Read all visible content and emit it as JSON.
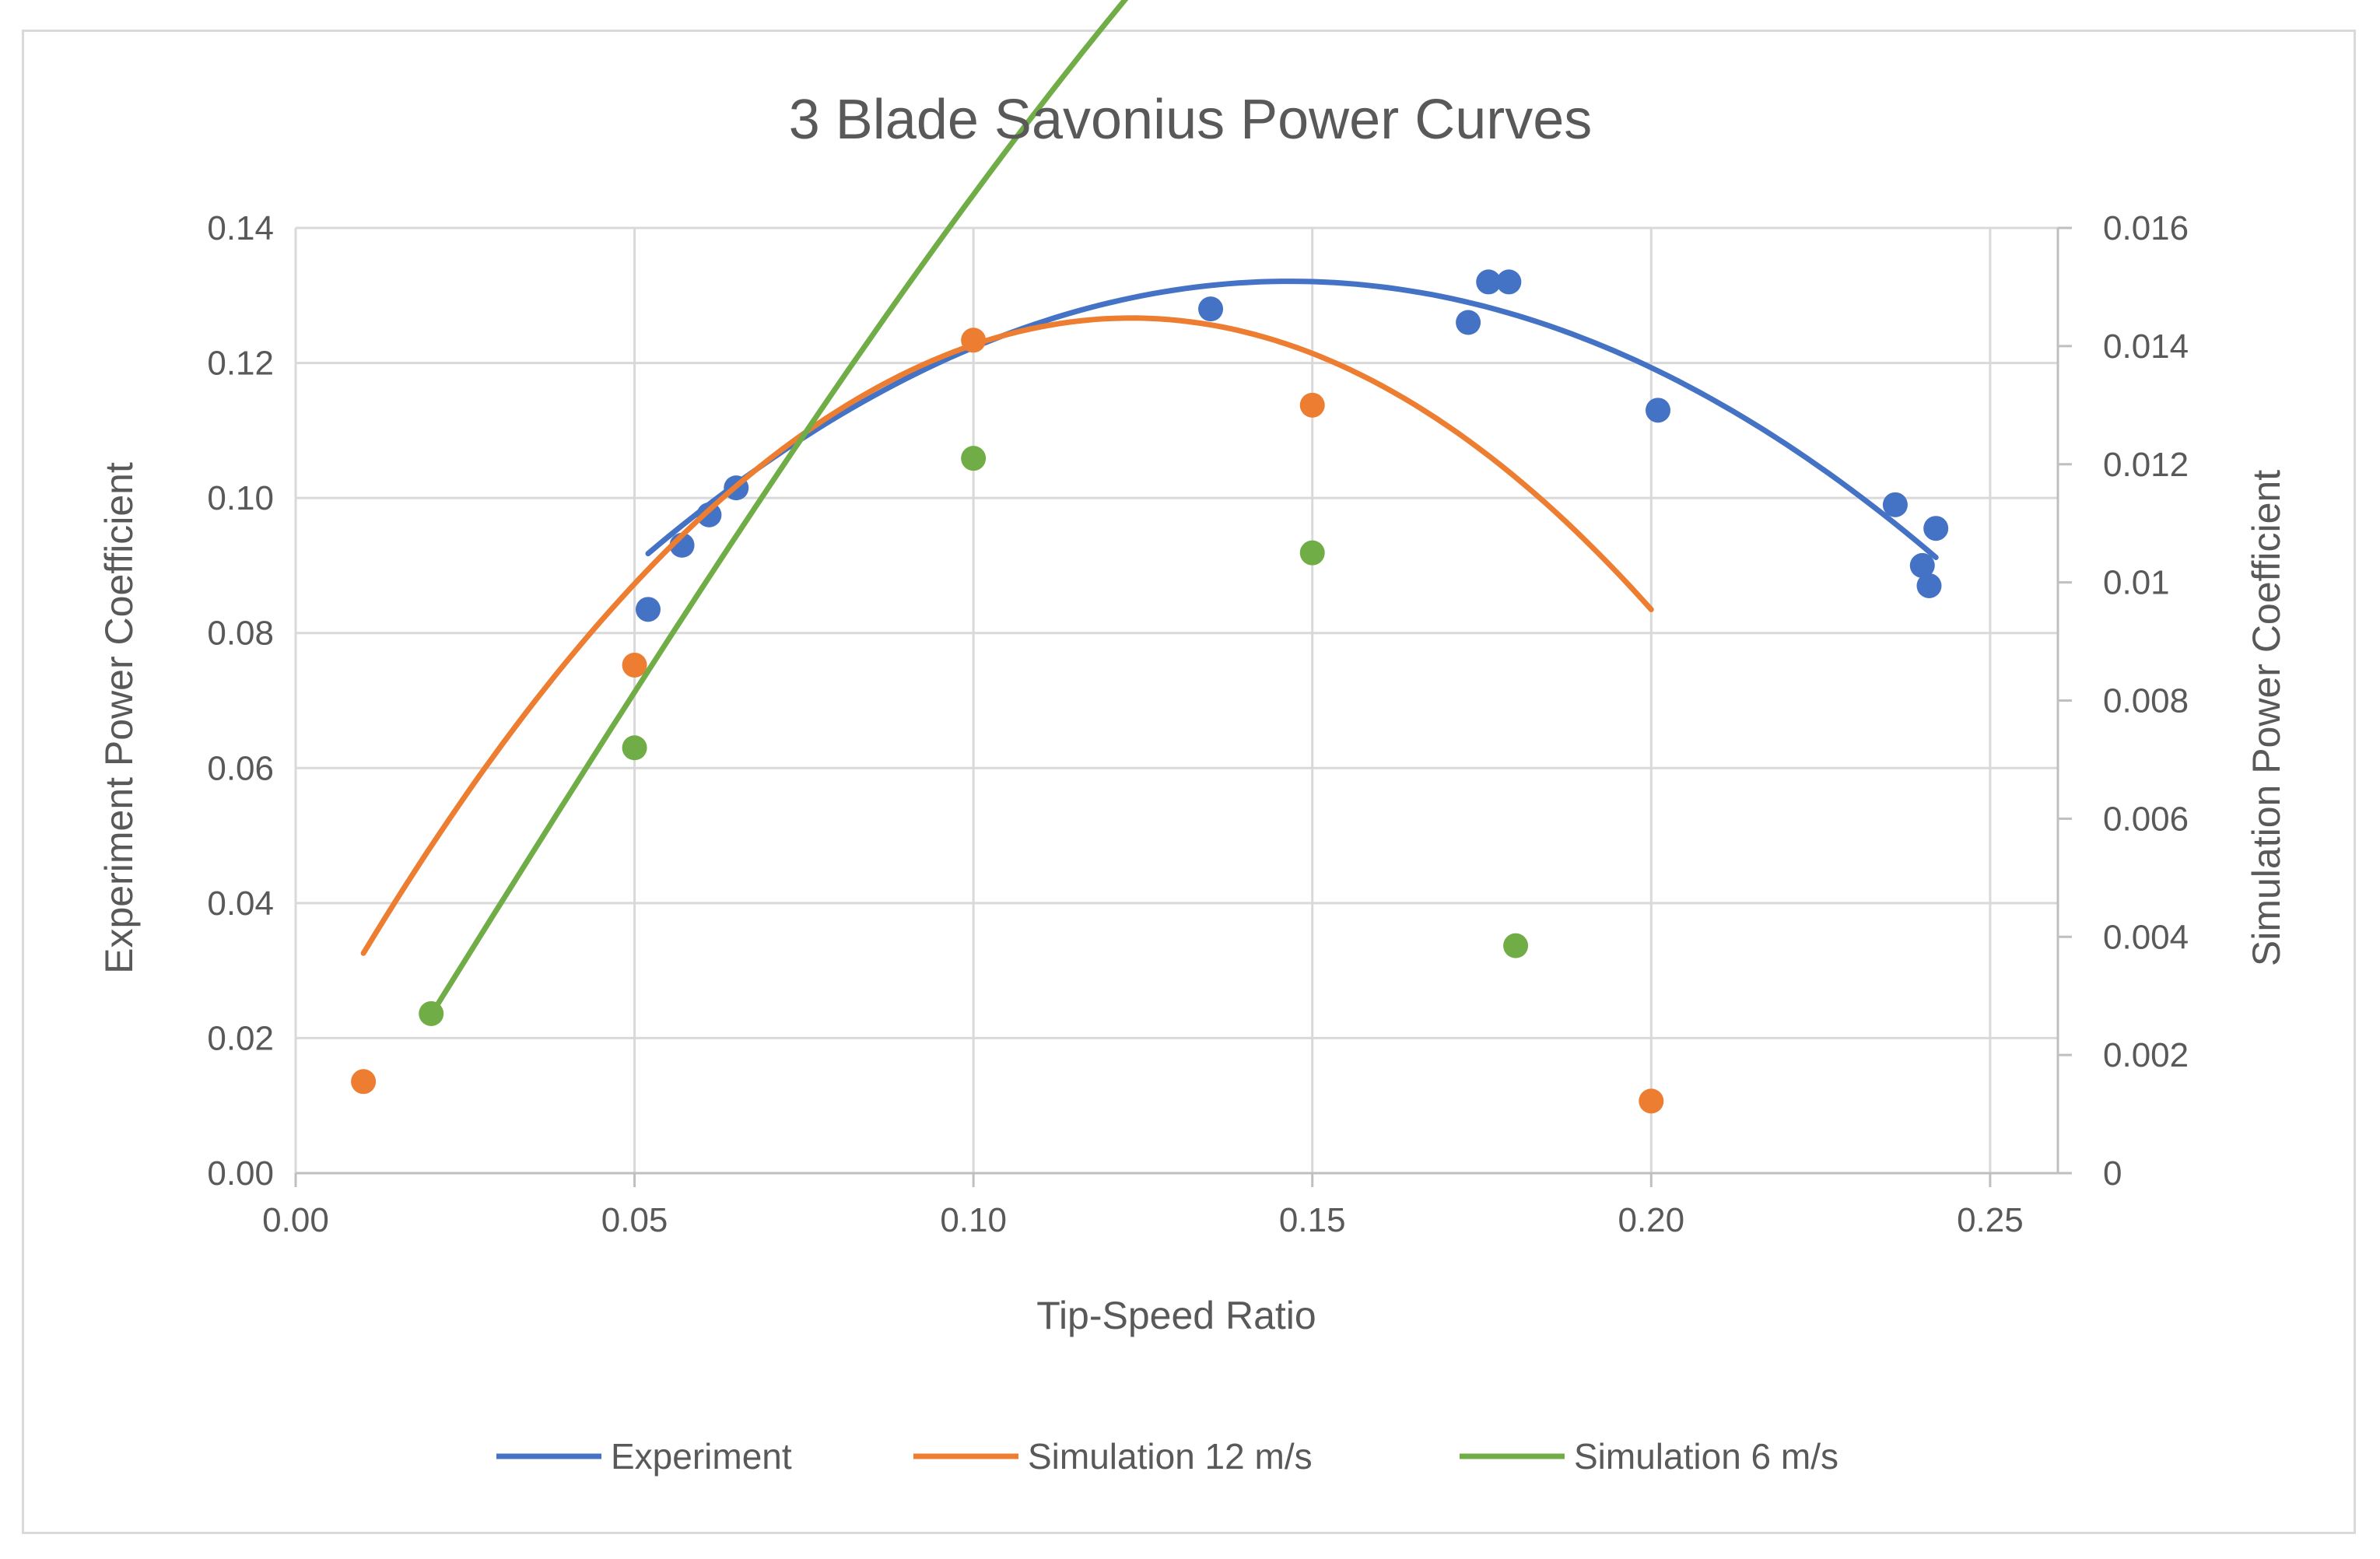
{
  "chart_data": {
    "type": "scatter",
    "title": "3 Blade Savonius Power Curves",
    "xlabel": "Tip-Speed Ratio",
    "ylabel": "Experiment Power Coefficient",
    "y2label": "Simulation Power Coefficient",
    "xlim": [
      0,
      0.26
    ],
    "ylim": [
      0,
      0.14
    ],
    "y2lim": [
      0,
      0.016
    ],
    "xticks": [
      0,
      0.05,
      0.1,
      0.15,
      0.2,
      0.25
    ],
    "xtick_labels": [
      "0.00",
      "0.05",
      "0.10",
      "0.15",
      "0.20",
      "0.25"
    ],
    "yticks": [
      0,
      0.02,
      0.04,
      0.06,
      0.08,
      0.1,
      0.12,
      0.14
    ],
    "ytick_labels": [
      "0.00",
      "0.02",
      "0.04",
      "0.06",
      "0.08",
      "0.10",
      "0.12",
      "0.14"
    ],
    "y2ticks": [
      0,
      0.002,
      0.004,
      0.006,
      0.008,
      0.01,
      0.012,
      0.014,
      0.016
    ],
    "y2tick_labels": [
      "0",
      "0.002",
      "0.004",
      "0.006",
      "0.008",
      "0.01",
      "0.012",
      "0.014",
      "0.016"
    ],
    "grid": true,
    "legend_position": "bottom",
    "series": [
      {
        "name": "Experiment",
        "axis": "left",
        "color": "#4472c4",
        "points": [
          [
            0.052,
            0.0835
          ],
          [
            0.057,
            0.093
          ],
          [
            0.061,
            0.0975
          ],
          [
            0.065,
            0.1015
          ],
          [
            0.135,
            0.128
          ],
          [
            0.173,
            0.126
          ],
          [
            0.176,
            0.132
          ],
          [
            0.179,
            0.132
          ],
          [
            0.201,
            0.113
          ],
          [
            0.236,
            0.099
          ],
          [
            0.24,
            0.09
          ],
          [
            0.241,
            0.087
          ],
          [
            0.242,
            0.0955
          ]
        ],
        "trend_x": [
          0.052,
          0.242
        ],
        "trend_coeffs": [
          -4.5,
          1.32,
          0.0353
        ]
      },
      {
        "name": "Simulation 12 m/s",
        "axis": "right",
        "color": "#ed7d31",
        "points": [
          [
            0.01,
            0.00155
          ],
          [
            0.05,
            0.0086
          ],
          [
            0.1,
            0.0141
          ],
          [
            0.15,
            0.013
          ],
          [
            0.2,
            0.00122
          ]
        ],
        "trend_x": [
          0.01,
          0.2
        ],
        "trend_coeffs": [
          -3.6075e-08,
          -0.83808,
          0.20662,
          0.00174
        ]
      },
      {
        "name": "Simulation 6 m/s",
        "axis": "right",
        "color": "#70ad47",
        "points": [
          [
            0.02,
            0.0027
          ],
          [
            0.05,
            0.0072
          ],
          [
            0.1,
            0.0121
          ],
          [
            0.15,
            0.0105
          ],
          [
            0.18,
            0.00385
          ]
        ],
        "trend_x": [
          0.02,
          0.18
        ],
        "trend_coeffs": [
          -1.17,
          0.0294,
          0.1845,
          -0.00101
        ]
      }
    ]
  }
}
